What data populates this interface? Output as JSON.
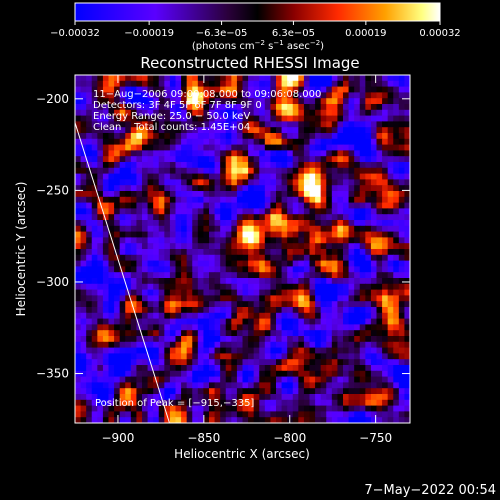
{
  "chart_data": {
    "type": "heatmap",
    "title": "Reconstructed RHESSI Image",
    "xlabel": "Heliocentric X (arcsec)",
    "ylabel": "Heliocentric Y (arcsec)",
    "xlim": [
      -925,
      -730
    ],
    "ylim": [
      -377,
      -187
    ],
    "x_ticks": [
      -900,
      -850,
      -800,
      -750
    ],
    "x_tick_labels": [
      "−900",
      "−850",
      "−800",
      "−750"
    ],
    "y_ticks": [
      -200,
      -250,
      -300,
      -350
    ],
    "y_tick_labels": [
      "−200",
      "−250",
      "−300",
      "−350"
    ],
    "colorbar": {
      "range": [
        -0.00032,
        0.00032
      ],
      "ticks": [
        -0.00032,
        -0.00019,
        -6.3e-05,
        6.3e-05,
        0.00019,
        0.00032
      ],
      "tick_labels": [
        "−0.00032",
        "−0.00019",
        "−6.3e−05",
        "6.3e−05",
        "0.00019",
        "0.00032"
      ],
      "units_prefix": "(photons cm",
      "units_sup1": "−2",
      "units_mid": " s",
      "units_sup2": "−1",
      "units_mid2": " asec",
      "units_sup3": "−2",
      "units_suffix": ")"
    },
    "annotations": [
      "11−Aug−2006 09:00:08.000 to 09:06:08.000",
      "Detectors: 3F 4F 5F 6F 7F 8F 9F 0",
      "Energy Range: 25.0 − 50.0 keV",
      "Clean    Total counts: 1.45E+04"
    ],
    "peak_label": "Position of Peak = [−915,−335]",
    "limb_line": [
      [
        -925,
        -213
      ],
      [
        -870,
        -377
      ]
    ],
    "grid": false,
    "timestamp": "7−May−2022 00:54"
  }
}
